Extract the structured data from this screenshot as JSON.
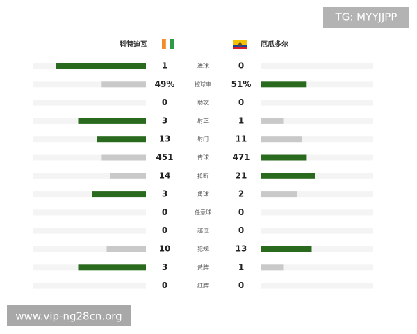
{
  "teams": {
    "home": "科特迪瓦",
    "away": "厄瓜多尔"
  },
  "colors": {
    "leader": "#2a6a1e",
    "trailer": "#c9c9c9",
    "track": "#f4f4f4"
  },
  "stats": [
    {
      "label": "进球",
      "home": 1,
      "away": 0
    },
    {
      "label": "控球率",
      "home": 49,
      "away": 51,
      "home_label": "49%",
      "away_label": "51%"
    },
    {
      "label": "助攻",
      "home": 0,
      "away": 0
    },
    {
      "label": "射正",
      "home": 3,
      "away": 1
    },
    {
      "label": "射门",
      "home": 13,
      "away": 11
    },
    {
      "label": "传球",
      "home": 451,
      "away": 471
    },
    {
      "label": "抢断",
      "home": 14,
      "away": 21
    },
    {
      "label": "角球",
      "home": 3,
      "away": 2
    },
    {
      "label": "任意球",
      "home": 0,
      "away": 0
    },
    {
      "label": "越位",
      "home": 0,
      "away": 0
    },
    {
      "label": "犯规",
      "home": 10,
      "away": 13
    },
    {
      "label": "黄牌",
      "home": 3,
      "away": 1
    },
    {
      "label": "红牌",
      "home": 0,
      "away": 0
    }
  ],
  "watermarks": {
    "top": "TG: MYYJJPP",
    "bottom": "www.vip-ng28cn.org"
  }
}
